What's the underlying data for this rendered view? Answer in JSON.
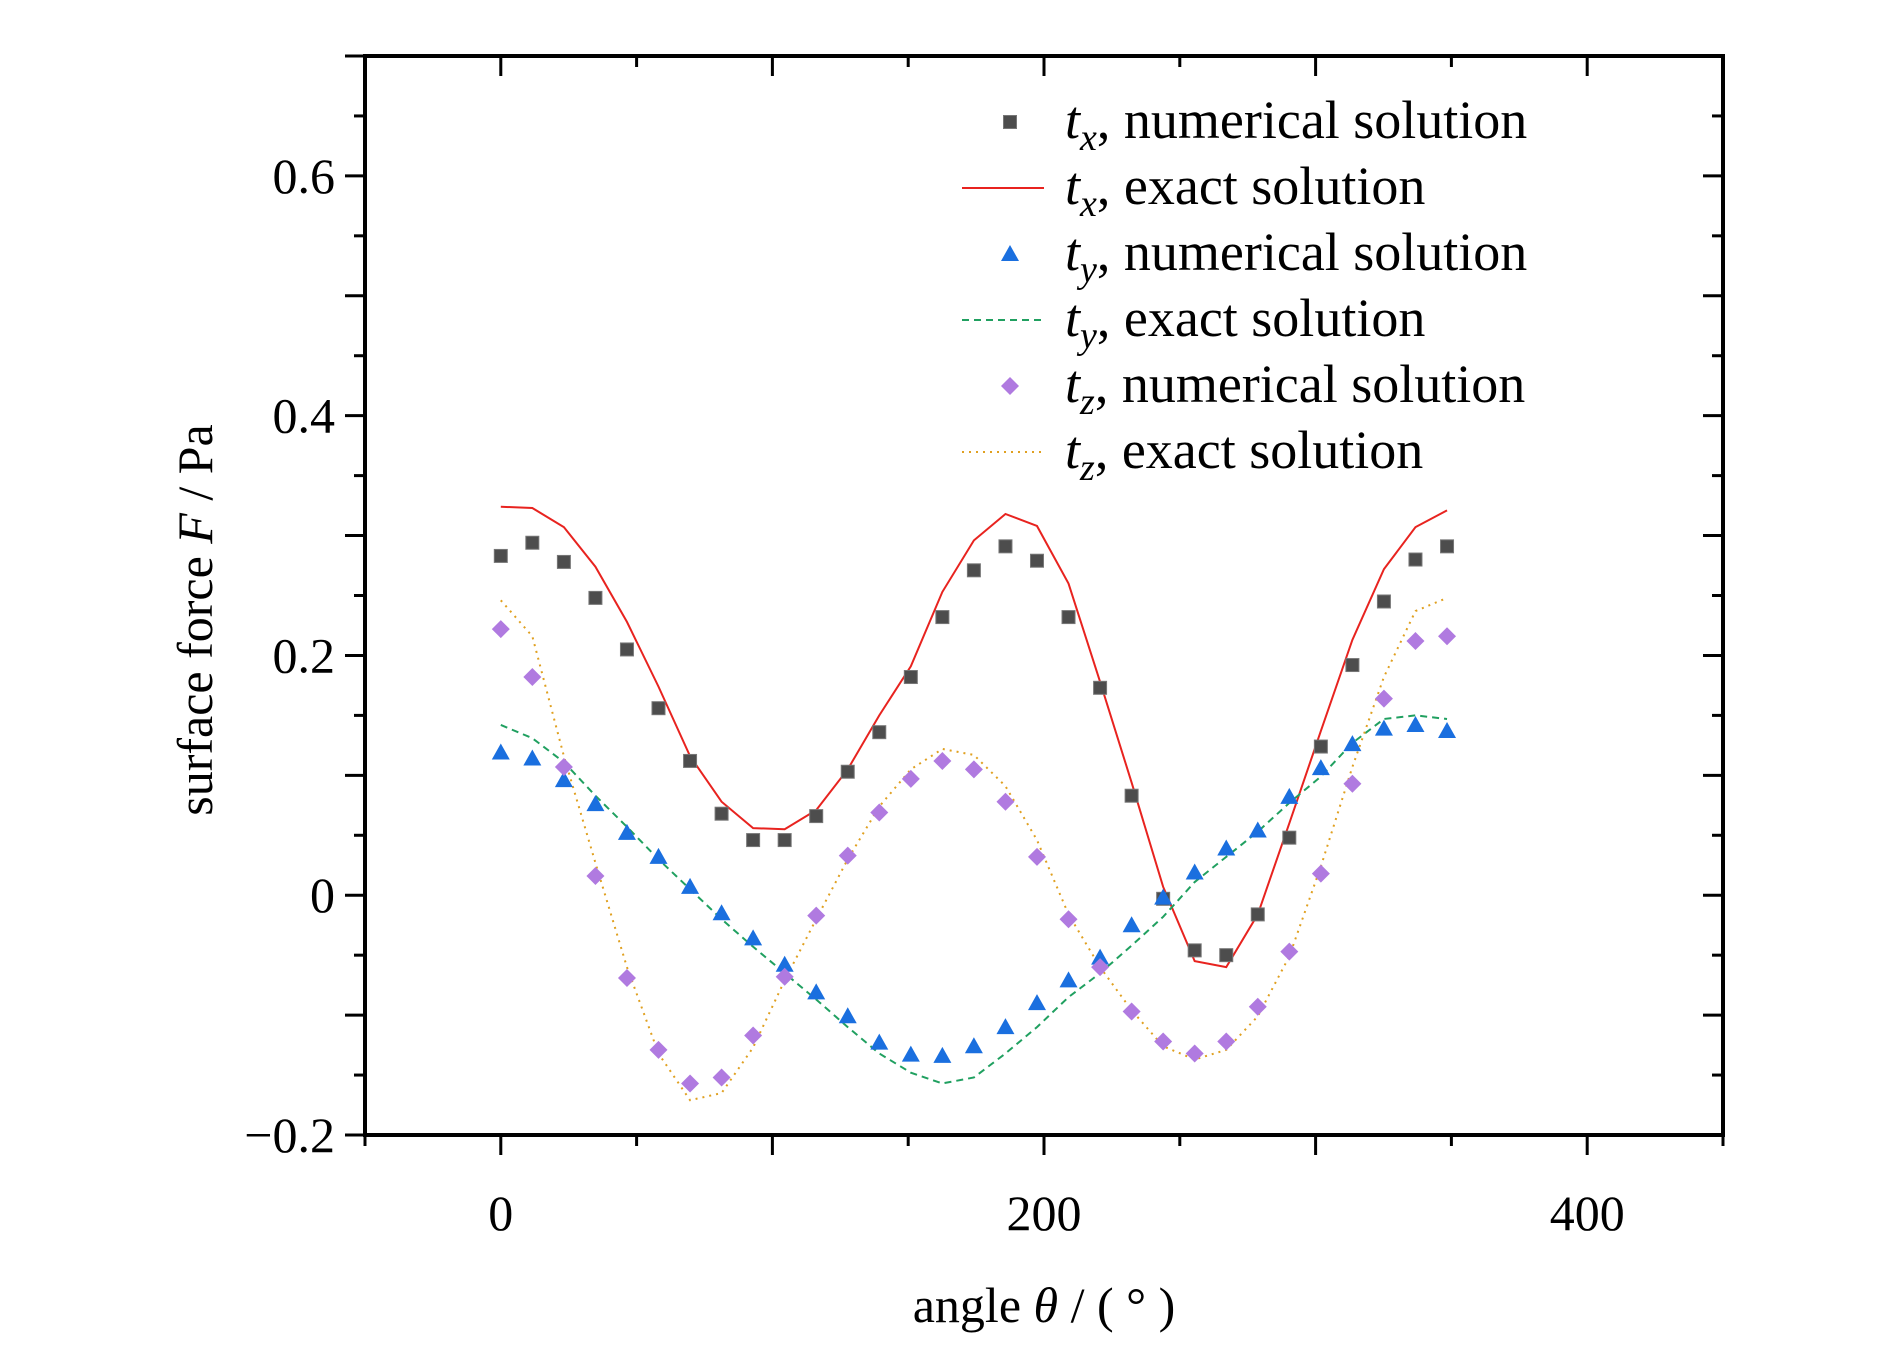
{
  "chart_data": {
    "type": "scatter",
    "title": "",
    "xlabel": "angle θ / ( ° )",
    "xlabel_parts": {
      "prefix": "angle ",
      "symbol": "θ",
      "suffix": " / ( ° )"
    },
    "ylabel": "surface force F / Pa",
    "ylabel_parts": {
      "prefix": "surface force ",
      "symbol": "F",
      "suffix": " / Pa"
    },
    "xlim": [
      -50,
      450
    ],
    "ylim": [
      -0.2,
      0.7
    ],
    "x_ticks": [
      0,
      200,
      400
    ],
    "x_tick_labels": [
      "0",
      "200",
      "400"
    ],
    "x_minor_step": 50,
    "y_ticks": [
      -0.2,
      0,
      0.2,
      0.4,
      0.6
    ],
    "y_tick_labels": [
      "−0.2",
      "0",
      "0.2",
      "0.4",
      "0.6"
    ],
    "y_minor_step": 0.1,
    "grid": false,
    "legend_position": "top-right",
    "x": [
      0,
      11.61,
      23.23,
      34.84,
      46.45,
      58.06,
      69.68,
      81.29,
      92.9,
      104.52,
      116.13,
      127.74,
      139.35,
      150.97,
      162.58,
      174.19,
      185.81,
      197.42,
      209.03,
      220.65,
      232.26,
      243.87,
      255.48,
      267.1,
      278.71,
      290.32,
      301.94,
      313.55,
      325.16,
      336.77,
      348.39
    ],
    "series": [
      {
        "name": "tx, numerical solution",
        "sym": "t",
        "sub": "x",
        "label": ", numerical solution",
        "kind": "square",
        "color": "#4d4d4d",
        "values": [
          0.283,
          0.294,
          0.278,
          0.248,
          0.205,
          0.156,
          0.112,
          0.068,
          0.046,
          0.046,
          0.066,
          0.103,
          0.136,
          0.182,
          0.232,
          0.271,
          0.291,
          0.279,
          0.232,
          0.173,
          0.083,
          -0.003,
          -0.046,
          -0.05,
          -0.016,
          0.048,
          0.124,
          0.192,
          0.245,
          0.28,
          0.291
        ]
      },
      {
        "name": "tx, exact solution",
        "sym": "t",
        "sub": "x",
        "label": ", exact solution",
        "kind": "solid",
        "color": "#e8231f",
        "values": [
          0.324,
          0.323,
          0.307,
          0.274,
          0.228,
          0.174,
          0.116,
          0.078,
          0.056,
          0.055,
          0.071,
          0.105,
          0.15,
          0.191,
          0.253,
          0.296,
          0.318,
          0.308,
          0.26,
          0.178,
          0.094,
          0.007,
          -0.055,
          -0.06,
          -0.016,
          0.06,
          0.137,
          0.213,
          0.272,
          0.307,
          0.321
        ]
      },
      {
        "name": "ty, numerical solution",
        "sym": "t",
        "sub": "y",
        "label": ", numerical solution",
        "kind": "triangle",
        "color": "#1a6fdf",
        "values": [
          0.119,
          0.114,
          0.096,
          0.076,
          0.052,
          0.032,
          0.007,
          -0.015,
          -0.036,
          -0.058,
          -0.081,
          -0.101,
          -0.123,
          -0.133,
          -0.134,
          -0.126,
          -0.11,
          -0.09,
          -0.071,
          -0.052,
          -0.025,
          -0.002,
          0.019,
          0.039,
          0.054,
          0.082,
          0.106,
          0.126,
          0.139,
          0.142,
          0.137
        ]
      },
      {
        "name": "ty, exact solution",
        "sym": "t",
        "sub": "y",
        "label": ", exact solution",
        "kind": "dashed",
        "color": "#20a060",
        "values": [
          0.142,
          0.131,
          0.111,
          0.083,
          0.057,
          0.03,
          0.005,
          -0.02,
          -0.043,
          -0.065,
          -0.087,
          -0.11,
          -0.132,
          -0.148,
          -0.157,
          -0.152,
          -0.132,
          -0.11,
          -0.085,
          -0.065,
          -0.042,
          -0.018,
          0.011,
          0.032,
          0.053,
          0.077,
          0.099,
          0.127,
          0.147,
          0.15,
          0.147
        ]
      },
      {
        "name": "tz, numerical solution",
        "sym": "t",
        "sub": "z",
        "label": ", numerical solution",
        "kind": "diamond",
        "color": "#b07ae0",
        "values": [
          0.222,
          0.182,
          0.107,
          0.016,
          -0.069,
          -0.129,
          -0.157,
          -0.152,
          -0.117,
          -0.068,
          -0.017,
          0.033,
          0.069,
          0.097,
          0.112,
          0.105,
          0.078,
          0.032,
          -0.02,
          -0.06,
          -0.097,
          -0.122,
          -0.132,
          -0.122,
          -0.093,
          -0.047,
          0.018,
          0.093,
          0.164,
          0.212,
          0.216
        ]
      },
      {
        "name": "tz, exact solution",
        "sym": "t",
        "sub": "z",
        "label": ", exact solution",
        "kind": "dotted",
        "color": "#e0a020",
        "values": [
          0.246,
          0.216,
          0.116,
          0.027,
          -0.06,
          -0.132,
          -0.171,
          -0.165,
          -0.127,
          -0.071,
          -0.02,
          0.03,
          0.074,
          0.105,
          0.122,
          0.117,
          0.091,
          0.046,
          -0.016,
          -0.06,
          -0.096,
          -0.126,
          -0.137,
          -0.129,
          -0.101,
          -0.051,
          0.024,
          0.107,
          0.182,
          0.237,
          0.248
        ]
      }
    ]
  }
}
